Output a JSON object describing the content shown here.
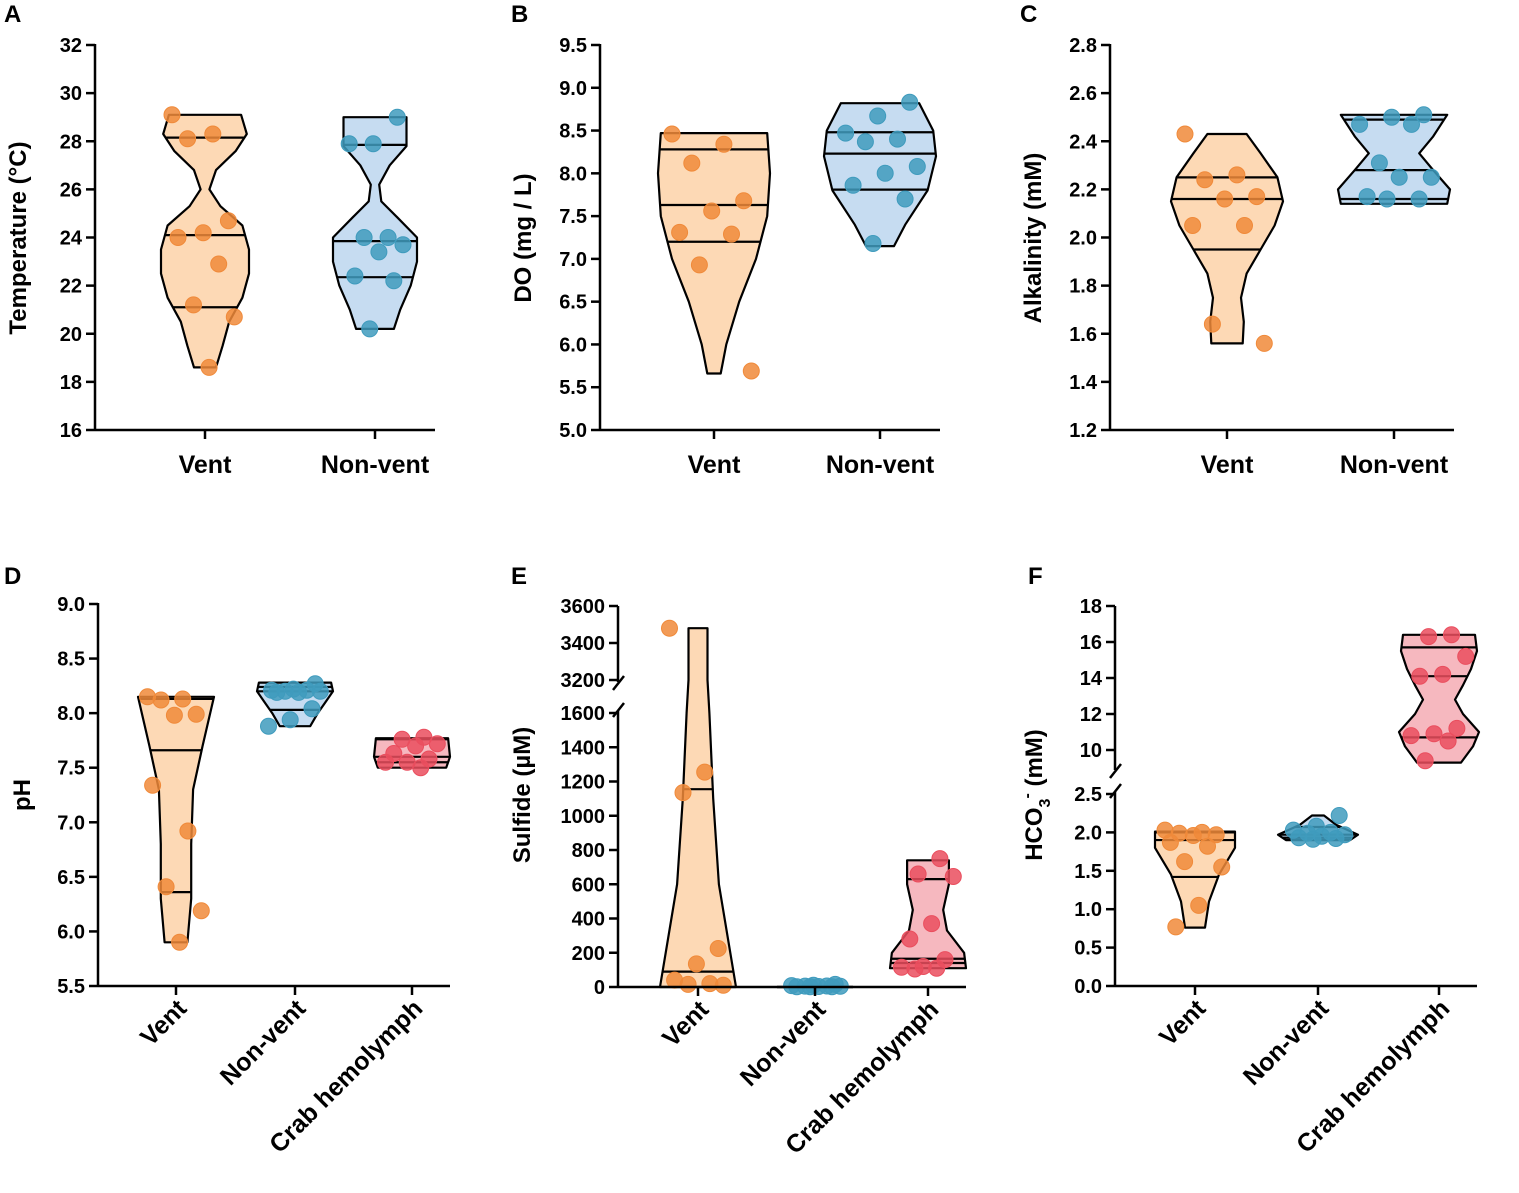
{
  "colors": {
    "vent_fill": "#fdd9b5",
    "vent_dot": "#f08a3a",
    "nonvent_fill": "#c6dcf1",
    "nonvent_dot": "#3f9bbd",
    "crab_fill": "#f6b8bf",
    "crab_dot": "#ea4e5e"
  },
  "chart_data": [
    {
      "panel": "A",
      "type": "violin",
      "ylabel": "Temperature (°C)",
      "ylim": [
        16,
        32
      ],
      "yticks": [
        "16",
        "18",
        "20",
        "22",
        "24",
        "26",
        "28",
        "30",
        "32"
      ],
      "categories": [
        "Vent",
        "Non-vent"
      ],
      "series": [
        {
          "name": "Vent",
          "color_key": "vent",
          "points": [
            29.1,
            28.3,
            28.1,
            24.7,
            24.2,
            24.0,
            22.9,
            21.2,
            20.7,
            18.6
          ],
          "min": 18.6,
          "max": 29.1,
          "quartiles": [
            21.1,
            24.1,
            28.15
          ],
          "profile": [
            [
              18.6,
              0.25
            ],
            [
              19.5,
              0.4
            ],
            [
              20.5,
              0.55
            ],
            [
              21.5,
              0.85
            ],
            [
              22.5,
              1.0
            ],
            [
              23.5,
              1.0
            ],
            [
              24.5,
              0.85
            ],
            [
              25.3,
              0.35
            ],
            [
              26.0,
              0.1
            ],
            [
              26.8,
              0.25
            ],
            [
              27.6,
              0.7
            ],
            [
              28.3,
              0.95
            ],
            [
              29.1,
              0.82
            ]
          ]
        },
        {
          "name": "Non-vent",
          "color_key": "nonvent",
          "points": [
            29.0,
            27.9,
            27.9,
            24.0,
            24.0,
            23.7,
            23.4,
            22.4,
            22.2,
            20.2
          ],
          "min": 20.2,
          "max": 29.0,
          "quartiles": [
            22.35,
            23.85,
            27.85
          ],
          "profile": [
            [
              20.2,
              0.45
            ],
            [
              21.0,
              0.6
            ],
            [
              22.0,
              0.85
            ],
            [
              23.0,
              1.0
            ],
            [
              24.0,
              1.0
            ],
            [
              24.8,
              0.55
            ],
            [
              25.5,
              0.15
            ],
            [
              26.2,
              0.1
            ],
            [
              27.0,
              0.35
            ],
            [
              27.8,
              0.75
            ],
            [
              29.0,
              0.75
            ]
          ]
        }
      ]
    },
    {
      "panel": "B",
      "type": "violin",
      "ylabel": "DO (mg / L)",
      "ylim": [
        5.0,
        9.5
      ],
      "yticks": [
        "5.0",
        "5.5",
        "6.0",
        "6.5",
        "7.0",
        "7.5",
        "8.0",
        "8.5",
        "9.0",
        "9.5"
      ],
      "categories": [
        "Vent",
        "Non-vent"
      ],
      "series": [
        {
          "name": "Vent",
          "color_key": "vent",
          "points": [
            8.46,
            8.34,
            8.12,
            7.68,
            7.56,
            7.31,
            7.29,
            6.93,
            5.69
          ],
          "min": 5.66,
          "max": 8.47,
          "quartiles": [
            7.2,
            7.63,
            8.28
          ],
          "profile": [
            [
              5.66,
              0.12
            ],
            [
              6.0,
              0.22
            ],
            [
              6.5,
              0.45
            ],
            [
              7.0,
              0.75
            ],
            [
              7.5,
              0.95
            ],
            [
              8.0,
              1.0
            ],
            [
              8.47,
              0.95
            ]
          ]
        },
        {
          "name": "Non-vent",
          "color_key": "nonvent",
          "points": [
            8.83,
            8.67,
            8.47,
            8.4,
            8.37,
            8.08,
            8.0,
            7.86,
            7.7,
            7.18
          ],
          "min": 7.15,
          "max": 8.82,
          "quartiles": [
            7.81,
            8.23,
            8.48
          ],
          "profile": [
            [
              7.15,
              0.25
            ],
            [
              7.4,
              0.45
            ],
            [
              7.8,
              0.85
            ],
            [
              8.2,
              1.0
            ],
            [
              8.5,
              0.95
            ],
            [
              8.82,
              0.7
            ]
          ]
        }
      ]
    },
    {
      "panel": "C",
      "type": "violin",
      "ylabel": "Alkalinity (mM)",
      "ylim": [
        1.2,
        2.8
      ],
      "yticks": [
        "1.2",
        "1.4",
        "1.6",
        "1.8",
        "2.0",
        "2.2",
        "2.4",
        "2.6",
        "2.8"
      ],
      "categories": [
        "Vent",
        "Non-vent"
      ],
      "series": [
        {
          "name": "Vent",
          "color_key": "vent",
          "points": [
            2.43,
            2.26,
            2.24,
            2.17,
            2.16,
            2.05,
            2.05,
            1.64,
            1.56
          ],
          "min": 1.56,
          "max": 2.43,
          "quartiles": [
            1.95,
            2.16,
            2.25
          ],
          "profile": [
            [
              1.56,
              0.28
            ],
            [
              1.65,
              0.3
            ],
            [
              1.75,
              0.25
            ],
            [
              1.85,
              0.35
            ],
            [
              1.95,
              0.6
            ],
            [
              2.05,
              0.85
            ],
            [
              2.15,
              1.0
            ],
            [
              2.25,
              0.9
            ],
            [
              2.35,
              0.6
            ],
            [
              2.43,
              0.35
            ]
          ]
        },
        {
          "name": "Non-vent",
          "color_key": "nonvent",
          "points": [
            2.51,
            2.5,
            2.47,
            2.47,
            2.31,
            2.25,
            2.25,
            2.17,
            2.16,
            2.16
          ],
          "min": 2.14,
          "max": 2.51,
          "quartiles": [
            2.16,
            2.28,
            2.49
          ],
          "profile": [
            [
              2.14,
              0.95
            ],
            [
              2.2,
              1.0
            ],
            [
              2.28,
              0.7
            ],
            [
              2.35,
              0.45
            ],
            [
              2.42,
              0.7
            ],
            [
              2.51,
              0.95
            ]
          ]
        }
      ]
    },
    {
      "panel": "D",
      "type": "violin",
      "ylabel": "pH",
      "ylim": [
        5.5,
        9.0
      ],
      "yticks": [
        "5.5",
        "6.0",
        "6.5",
        "7.0",
        "7.5",
        "8.0",
        "8.5",
        "9.0"
      ],
      "categories": [
        "Vent",
        "Non-vent",
        "Crab hemolymph"
      ],
      "series": [
        {
          "name": "Vent",
          "color_key": "vent",
          "points": [
            8.15,
            8.13,
            8.12,
            7.99,
            7.98,
            7.34,
            6.92,
            6.41,
            6.19,
            5.9
          ],
          "min": 5.9,
          "max": 8.15,
          "quartiles": [
            6.36,
            7.66,
            8.13
          ],
          "profile": [
            [
              5.9,
              0.3
            ],
            [
              6.3,
              0.4
            ],
            [
              6.8,
              0.4
            ],
            [
              7.3,
              0.45
            ],
            [
              7.7,
              0.7
            ],
            [
              8.15,
              1.0
            ]
          ]
        },
        {
          "name": "Non-vent",
          "color_key": "nonvent",
          "points": [
            8.27,
            8.22,
            8.21,
            8.21,
            8.2,
            8.2,
            8.19,
            8.19,
            8.04,
            7.94,
            7.88
          ],
          "min": 7.88,
          "max": 8.28,
          "quartiles": [
            8.03,
            8.2,
            8.24
          ],
          "profile": [
            [
              7.88,
              0.4
            ],
            [
              8.0,
              0.6
            ],
            [
              8.1,
              0.8
            ],
            [
              8.2,
              1.0
            ],
            [
              8.28,
              0.95
            ]
          ]
        },
        {
          "name": "Crab hemolymph",
          "color_key": "crab",
          "points": [
            7.78,
            7.76,
            7.72,
            7.7,
            7.63,
            7.58,
            7.55,
            7.55,
            7.5
          ],
          "min": 7.5,
          "max": 7.77,
          "quartiles": [
            7.55,
            7.6,
            7.76
          ],
          "profile": [
            [
              7.5,
              0.9
            ],
            [
              7.6,
              1.0
            ],
            [
              7.77,
              0.95
            ]
          ]
        }
      ]
    },
    {
      "panel": "E",
      "type": "violin",
      "ylabel": "Sulfide (µM)",
      "axis_break": {
        "lower_range": [
          0,
          1600
        ],
        "upper_range": [
          3200,
          3600
        ]
      },
      "yticks_lower": [
        "0",
        "200",
        "400",
        "600",
        "800",
        "1000",
        "1200",
        "1400",
        "1600"
      ],
      "yticks_upper": [
        "3200",
        "3400",
        "3600"
      ],
      "categories": [
        "Vent",
        "Non-vent",
        "Crab hemolymph"
      ],
      "series": [
        {
          "name": "Vent",
          "color_key": "vent",
          "points": [
            3480,
            1255,
            1135,
            225,
            135,
            40,
            20,
            15,
            10
          ],
          "min": 0,
          "max": 3480,
          "quartiles": [
            90,
            1155
          ],
          "profile": [
            [
              0,
              1.0
            ],
            [
              200,
              0.85
            ],
            [
              600,
              0.55
            ],
            [
              1100,
              0.4
            ],
            [
              1600,
              0.3
            ],
            [
              3200,
              0.25
            ],
            [
              3480,
              0.25
            ]
          ]
        },
        {
          "name": "Non-vent",
          "color_key": "nonvent",
          "points": [
            15,
            10,
            8,
            6,
            5,
            4,
            3,
            2,
            2,
            1
          ],
          "min": 0,
          "max": 15,
          "quartiles": [],
          "profile": [
            [
              0,
              1.0
            ],
            [
              15,
              1.0
            ]
          ]
        },
        {
          "name": "Crab hemolymph",
          "color_key": "crab",
          "points": [
            750,
            660,
            645,
            370,
            280,
            160,
            120,
            115,
            110,
            105
          ],
          "min": 110,
          "max": 740,
          "quartiles": [
            140,
            165,
            630
          ],
          "profile": [
            [
              110,
              1.0
            ],
            [
              200,
              0.95
            ],
            [
              330,
              0.5
            ],
            [
              450,
              0.4
            ],
            [
              600,
              0.55
            ],
            [
              740,
              0.55
            ]
          ]
        }
      ]
    },
    {
      "panel": "F",
      "type": "violin",
      "ylabel_main": "HCO",
      "ylabel_sub": "3",
      "ylabel_sup": "-",
      "ylabel_rest": " (mM)",
      "axis_break": {
        "lower_range": [
          0.0,
          2.5
        ],
        "upper_range": [
          9.0,
          18.0
        ]
      },
      "yticks_lower": [
        "0.0",
        "0.5",
        "1.0",
        "1.5",
        "2.0",
        "2.5"
      ],
      "yticks_upper": [
        "10",
        "12",
        "14",
        "16",
        "18"
      ],
      "categories": [
        "Vent",
        "Non-vent",
        "Crab hemolymph"
      ],
      "series": [
        {
          "name": "Vent",
          "color_key": "vent",
          "points": [
            2.03,
            2.0,
            1.99,
            1.97,
            1.96,
            1.87,
            1.82,
            1.62,
            1.55,
            1.05,
            0.77
          ],
          "min": 0.76,
          "max": 2.01,
          "quartiles": [
            1.42,
            1.9,
            2.0
          ],
          "profile": [
            [
              0.76,
              0.25
            ],
            [
              1.1,
              0.35
            ],
            [
              1.45,
              0.6
            ],
            [
              1.8,
              1.0
            ],
            [
              2.01,
              1.0
            ]
          ]
        },
        {
          "name": "Non-vent",
          "color_key": "nonvent",
          "points": [
            2.22,
            2.08,
            2.03,
            2.0,
            1.99,
            1.97,
            1.95,
            1.93,
            1.92,
            1.91
          ],
          "min": 1.9,
          "max": 2.22,
          "quartiles": [
            1.93,
            1.97,
            2.07
          ],
          "profile": [
            [
              1.9,
              0.8
            ],
            [
              1.97,
              1.0
            ],
            [
              2.1,
              0.45
            ],
            [
              2.22,
              0.15
            ]
          ]
        },
        {
          "name": "Crab hemolymph",
          "color_key": "crab",
          "points": [
            16.4,
            16.3,
            15.2,
            14.2,
            14.1,
            11.2,
            10.9,
            10.8,
            10.5,
            9.4
          ],
          "min": 9.3,
          "max": 16.4,
          "quartiles": [
            10.7,
            14.1,
            15.7
          ],
          "profile": [
            [
              9.3,
              0.55
            ],
            [
              10.2,
              0.85
            ],
            [
              11.0,
              1.0
            ],
            [
              12.0,
              0.6
            ],
            [
              12.8,
              0.4
            ],
            [
              13.6,
              0.6
            ],
            [
              14.5,
              0.8
            ],
            [
              15.5,
              0.95
            ],
            [
              16.4,
              0.9
            ]
          ]
        }
      ]
    }
  ]
}
